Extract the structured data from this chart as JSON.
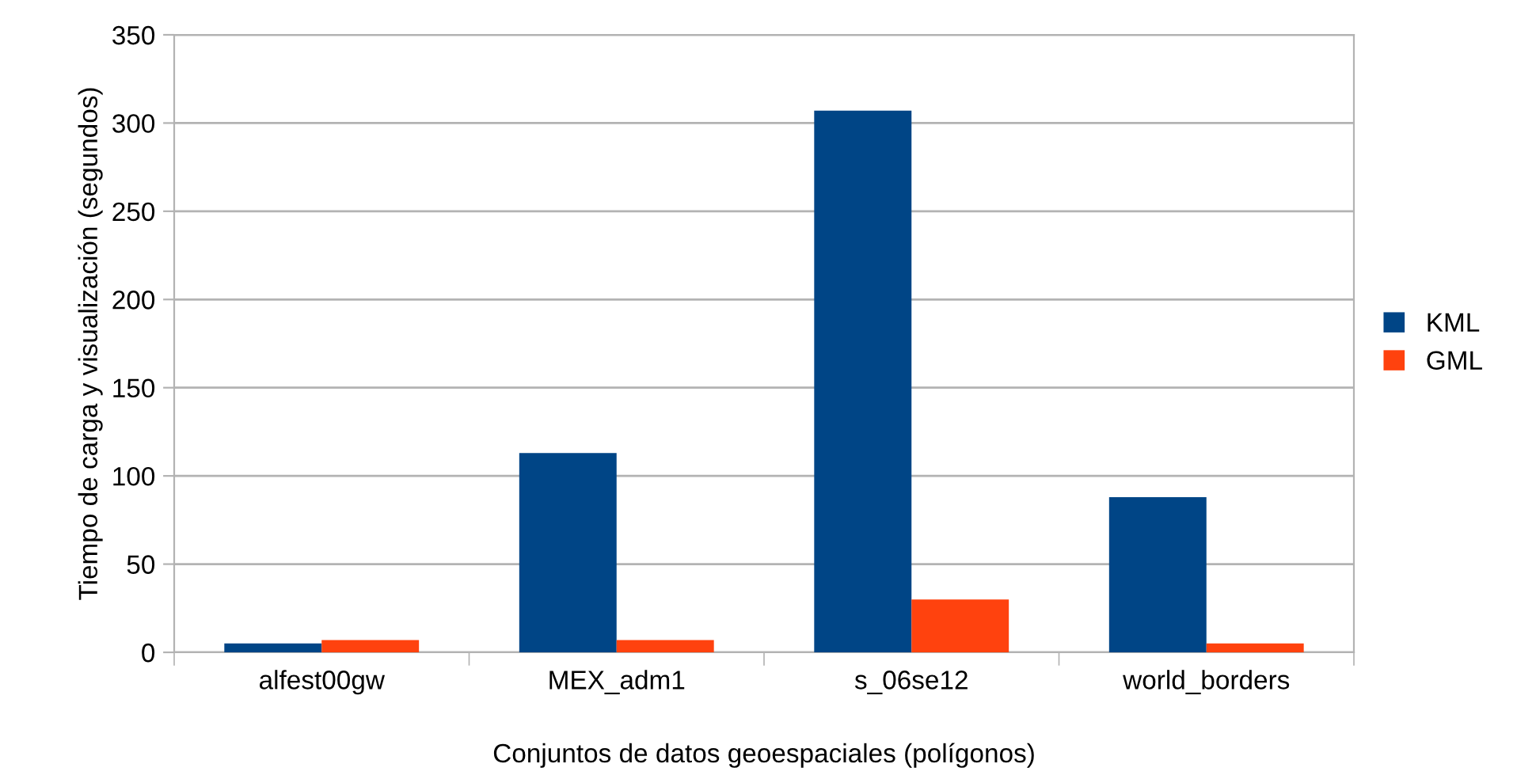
{
  "chart_data": {
    "type": "bar",
    "xlabel": "Conjuntos de datos geoespaciales (polígonos)",
    "ylabel": "Tiempo de carga y visualización (segundos)",
    "categories": [
      "alfest00gw",
      "MEX_adm1",
      "s_06se12",
      "world_borders"
    ],
    "series": [
      {
        "name": "KML",
        "color": "#004586",
        "values": [
          5,
          113,
          307,
          88
        ]
      },
      {
        "name": "GML",
        "color": "#ff420e",
        "values": [
          7,
          7,
          30,
          5
        ]
      }
    ],
    "ylim": [
      0,
      350
    ],
    "yticks": [
      0,
      50,
      100,
      150,
      200,
      250,
      300,
      350
    ],
    "grid": "y",
    "legend": "right"
  }
}
